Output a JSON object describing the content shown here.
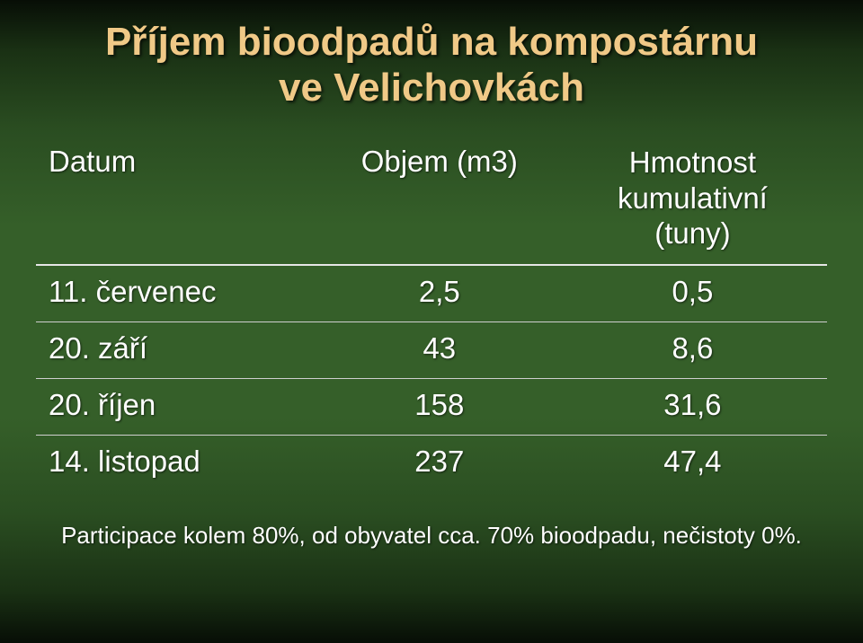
{
  "colors": {
    "title_color": "#f0c987",
    "text_color": "#ffffff",
    "header_border": "#e6e6e6",
    "row_border": "#cfcfcf"
  },
  "typography": {
    "title_fontsize": 44,
    "table_fontsize": 33,
    "footnote_fontsize": 26
  },
  "title": {
    "line1": "Příjem bioodpadů na kompostárnu",
    "line2": "ve Velichovkách"
  },
  "table": {
    "columns": [
      {
        "label": "Datum",
        "align": "left"
      },
      {
        "label": "Objem (m3)",
        "align": "center"
      },
      {
        "label": "Hmotnost\nkumulativní\n(tuny)",
        "align": "center"
      }
    ],
    "rows": [
      {
        "c0": "11. červenec",
        "c1": "2,5",
        "c2": "0,5",
        "bold": false
      },
      {
        "c0": "20. září",
        "c1": "43",
        "c2": "8,6",
        "bold": false
      },
      {
        "c0": "20. říjen",
        "c1": "158",
        "c2": "31,6",
        "bold": false
      },
      {
        "c0": "14. listopad",
        "c1": "237",
        "c2": "47,4",
        "bold": true
      }
    ]
  },
  "footnote": "Participace kolem 80%, od obyvatel cca. 70% bioodpadu, nečistoty 0%."
}
